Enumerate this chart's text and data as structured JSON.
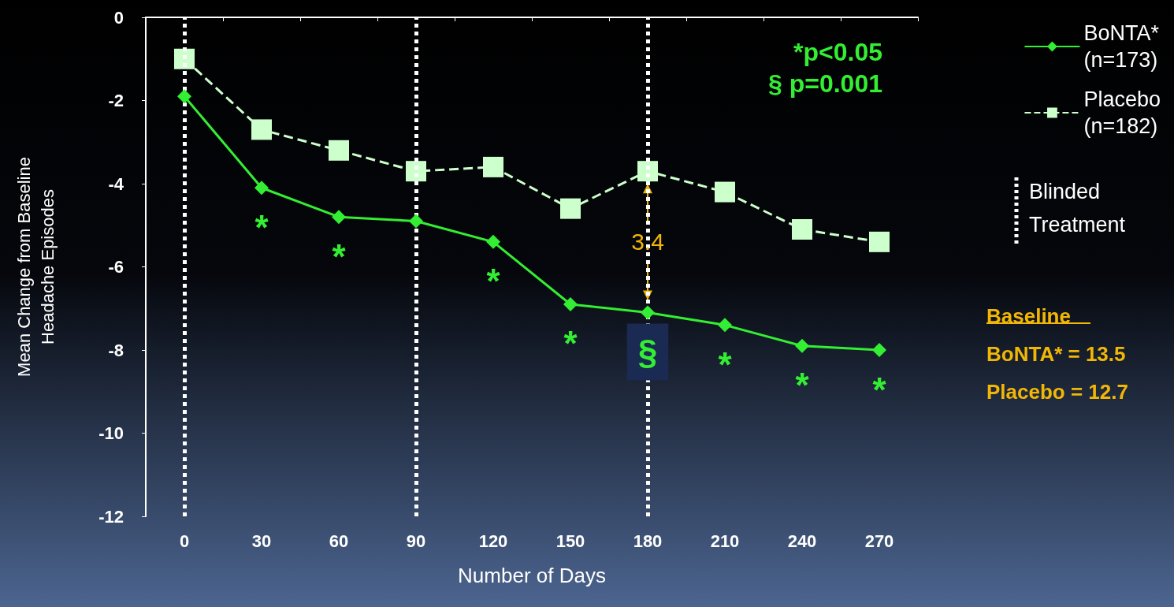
{
  "chart_data": {
    "type": "line",
    "xlabel": "Number of Days",
    "ylabel": "Mean Change from Baseline\nHeadache Episodes",
    "categories": [
      "0",
      "30",
      "60",
      "90",
      "120",
      "150",
      "180",
      "210",
      "240",
      "270"
    ],
    "series": [
      {
        "name": "BoNTA*\n(n=173)",
        "color": "#33ee33",
        "marker": "diamond",
        "line_style": "solid",
        "values": [
          -1.9,
          -4.1,
          -4.8,
          -4.9,
          -5.4,
          -6.9,
          -7.1,
          -7.4,
          -7.9,
          -8.0
        ]
      },
      {
        "name": "Placebo\n(n=182)",
        "color": "#ccffcc",
        "marker": "square",
        "line_style": "dashed",
        "values": [
          -1.0,
          -2.7,
          -3.2,
          -3.7,
          -3.6,
          -4.6,
          -3.7,
          -4.2,
          -5.1,
          -5.4
        ]
      }
    ],
    "ylim": [
      -12,
      0
    ],
    "yticks": [
      -12,
      -10,
      -8,
      -6,
      -4,
      -2,
      0
    ],
    "grid": false,
    "legend": "right",
    "ref_lines": [
      {
        "axis": "x",
        "value": "0",
        "color": "#ffffff",
        "line_style": "dotted"
      },
      {
        "axis": "x",
        "value": "90",
        "color": "#ffffff",
        "line_style": "dotted"
      },
      {
        "axis": "x",
        "value": "180",
        "color": "#ffffff",
        "line_style": "dotted"
      }
    ],
    "annotations": [
      {
        "text": "*",
        "x": "30",
        "y": -4.1
      },
      {
        "text": "*",
        "x": "60",
        "y": -4.8
      },
      {
        "text": "*",
        "x": "120",
        "y": -5.4
      },
      {
        "text": "*",
        "x": "150",
        "y": -6.9
      },
      {
        "text": "§",
        "x": "180",
        "y": -7.1
      },
      {
        "text": "*",
        "x": "210",
        "y": -7.4
      },
      {
        "text": "*",
        "x": "240",
        "y": -7.9
      },
      {
        "text": "*",
        "x": "270",
        "y": -8.0
      },
      {
        "text": "3.4",
        "x": "180",
        "y": -5.4
      },
      "*p<0.05",
      "§ p=0.001",
      "Baseline",
      "BoNTA* = 13.5",
      "Placebo = 12.7",
      "Blinded\nTreatment"
    ]
  }
}
